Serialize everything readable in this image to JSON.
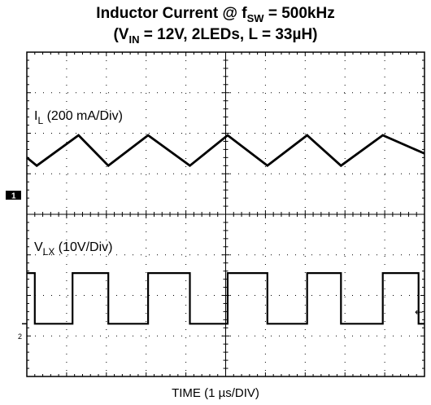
{
  "title": {
    "line1_pre": "Inductor Current @ f",
    "line1_sub": "SW",
    "line1_post": " = 500kHz",
    "line2_pre": "(V",
    "line2_sub": "IN",
    "line2_post": " = 12V, 2LEDs, L = 33µH)"
  },
  "xlabel": "TIME (1 µs/DIV)",
  "markers": {
    "ch1": "1",
    "ch2": "2",
    "trigger_arrow": "←"
  },
  "chart_data": {
    "type": "line",
    "title": "Inductor Current @ fSW = 500kHz (VIN = 12V, 2LEDs, L = 33µH)",
    "xlabel": "TIME (1 µs/DIV)",
    "x_divisions": 10,
    "y_divisions": 8,
    "grid": true,
    "series": [
      {
        "name": "IL (200 mA/Div)",
        "label_main": "I",
        "label_sub": "L",
        "label_rest": " (200 mA/Div)",
        "units": "divisions",
        "x": [
          0,
          0.25,
          1.3,
          2.05,
          3.05,
          4.1,
          5.05,
          6.05,
          7.05,
          7.9,
          8.95,
          10
        ],
        "y": [
          5.4,
          5.2,
          5.95,
          5.2,
          5.95,
          5.2,
          5.95,
          5.2,
          5.95,
          5.2,
          5.95,
          5.5
        ]
      },
      {
        "name": "VLX (10V/Div)",
        "label_main": "V",
        "label_sub": "LX",
        "label_rest": " (10V/Div)",
        "units": "divisions",
        "x": [
          0,
          0.2,
          0.2,
          1.15,
          1.15,
          2.05,
          2.05,
          3.05,
          3.05,
          4.1,
          4.1,
          5.05,
          5.05,
          6.05,
          6.05,
          7.05,
          7.05,
          7.9,
          7.9,
          8.95,
          8.95,
          9.85,
          9.85,
          10
        ],
        "y": [
          2.55,
          2.55,
          1.3,
          1.3,
          2.55,
          2.55,
          1.3,
          1.3,
          2.55,
          2.55,
          1.3,
          1.3,
          2.55,
          2.55,
          1.3,
          1.3,
          2.55,
          2.55,
          1.3,
          1.3,
          2.55,
          2.55,
          1.3,
          1.3
        ]
      }
    ],
    "trace_color": "#000000",
    "ch1_ground_div": 4,
    "ch2_ground_div": 1.3
  }
}
